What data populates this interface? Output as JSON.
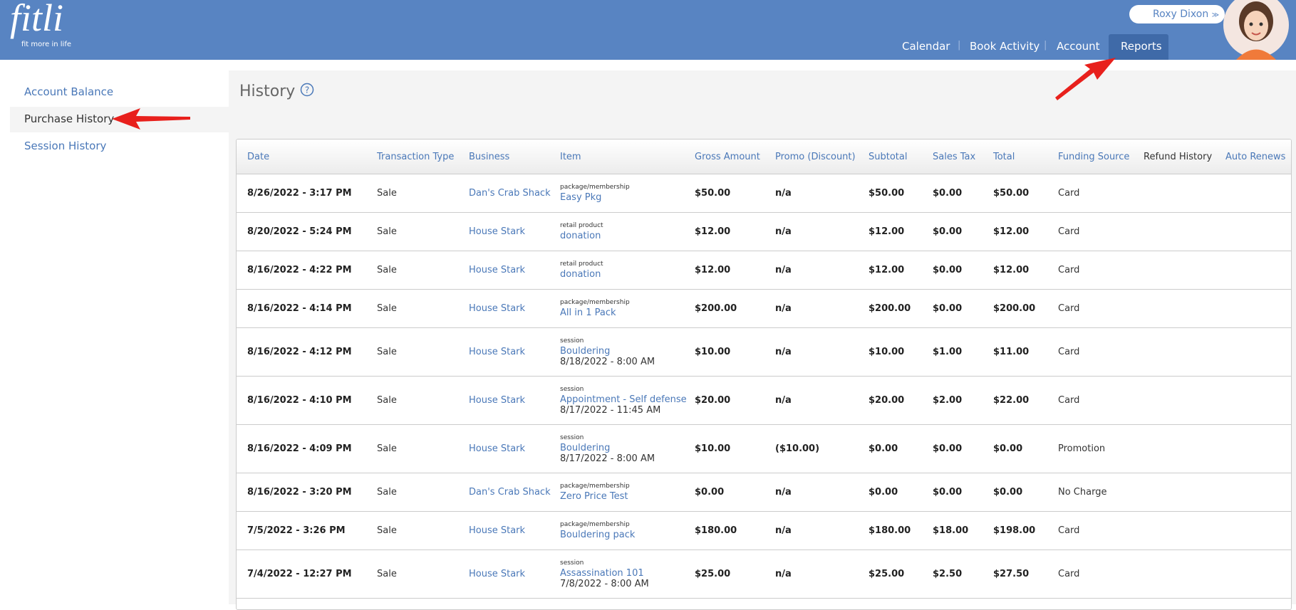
{
  "header": {
    "logo": "fitli",
    "tagline": "fit more in life",
    "user": "Roxy Dixon",
    "nav": [
      "Calendar",
      "Book Activity",
      "Account",
      "Reports"
    ]
  },
  "sidebar": [
    "Account Balance",
    "Purchase History",
    "Session History"
  ],
  "page_title": "History",
  "table": {
    "columns": [
      "Date",
      "Transaction Type",
      "Business",
      "Item",
      "Gross Amount",
      "Promo (Discount)",
      "Subtotal",
      "Sales Tax",
      "Total",
      "Funding Source",
      "Refund History",
      "Auto Renews"
    ],
    "rows": [
      {
        "date": "8/26/2022 - 3:17 PM",
        "type": "Sale",
        "business": "Dan's Crab Shack",
        "item_kind": "package/membership",
        "item_name": "Easy Pkg",
        "gross": "$50.00",
        "promo": "n/a",
        "subtotal": "$50.00",
        "tax": "$0.00",
        "total": "$50.00",
        "funding": "Card"
      },
      {
        "date": "8/20/2022 - 5:24 PM",
        "type": "Sale",
        "business": "House Stark",
        "item_kind": "retail product",
        "item_name": "donation",
        "gross": "$12.00",
        "promo": "n/a",
        "subtotal": "$12.00",
        "tax": "$0.00",
        "total": "$12.00",
        "funding": "Card"
      },
      {
        "date": "8/16/2022 - 4:22 PM",
        "type": "Sale",
        "business": "House Stark",
        "item_kind": "retail product",
        "item_name": "donation",
        "gross": "$12.00",
        "promo": "n/a",
        "subtotal": "$12.00",
        "tax": "$0.00",
        "total": "$12.00",
        "funding": "Card"
      },
      {
        "date": "8/16/2022 - 4:14 PM",
        "type": "Sale",
        "business": "House Stark",
        "item_kind": "package/membership",
        "item_name": "All in 1 Pack",
        "gross": "$200.00",
        "promo": "n/a",
        "subtotal": "$200.00",
        "tax": "$0.00",
        "total": "$200.00",
        "funding": "Card"
      },
      {
        "date": "8/16/2022 - 4:12 PM",
        "type": "Sale",
        "business": "House Stark",
        "item_kind": "session",
        "item_name": "Bouldering",
        "item_detail": "8/18/2022 - 8:00 AM",
        "gross": "$10.00",
        "promo": "n/a",
        "subtotal": "$10.00",
        "tax": "$1.00",
        "total": "$11.00",
        "funding": "Card"
      },
      {
        "date": "8/16/2022 - 4:10 PM",
        "type": "Sale",
        "business": "House Stark",
        "item_kind": "session",
        "item_name": "Appointment - Self defense",
        "item_detail": "8/17/2022 - 11:45 AM",
        "gross": "$20.00",
        "promo": "n/a",
        "subtotal": "$20.00",
        "tax": "$2.00",
        "total": "$22.00",
        "funding": "Card"
      },
      {
        "date": "8/16/2022 - 4:09 PM",
        "type": "Sale",
        "business": "House Stark",
        "item_kind": "session",
        "item_name": "Bouldering",
        "item_detail": "8/17/2022 - 8:00 AM",
        "gross": "$10.00",
        "promo": "($10.00)",
        "subtotal": "$0.00",
        "tax": "$0.00",
        "total": "$0.00",
        "funding": "Promotion"
      },
      {
        "date": "8/16/2022 - 3:20 PM",
        "type": "Sale",
        "business": "Dan's Crab Shack",
        "item_kind": "package/membership",
        "item_name": "Zero Price Test",
        "gross": "$0.00",
        "promo": "n/a",
        "subtotal": "$0.00",
        "tax": "$0.00",
        "total": "$0.00",
        "funding": "No Charge"
      },
      {
        "date": "7/5/2022 - 3:26 PM",
        "type": "Sale",
        "business": "House Stark",
        "item_kind": "package/membership",
        "item_name": "Bouldering pack",
        "gross": "$180.00",
        "promo": "n/a",
        "subtotal": "$180.00",
        "tax": "$18.00",
        "total": "$198.00",
        "funding": "Card"
      },
      {
        "date": "7/4/2022 - 12:27 PM",
        "type": "Sale",
        "business": "House Stark",
        "item_kind": "session",
        "item_name": "Assassination 101",
        "item_detail": "7/8/2022 - 8:00 AM",
        "gross": "$25.00",
        "promo": "n/a",
        "subtotal": "$25.00",
        "tax": "$2.50",
        "total": "$27.50",
        "funding": "Card"
      }
    ]
  }
}
